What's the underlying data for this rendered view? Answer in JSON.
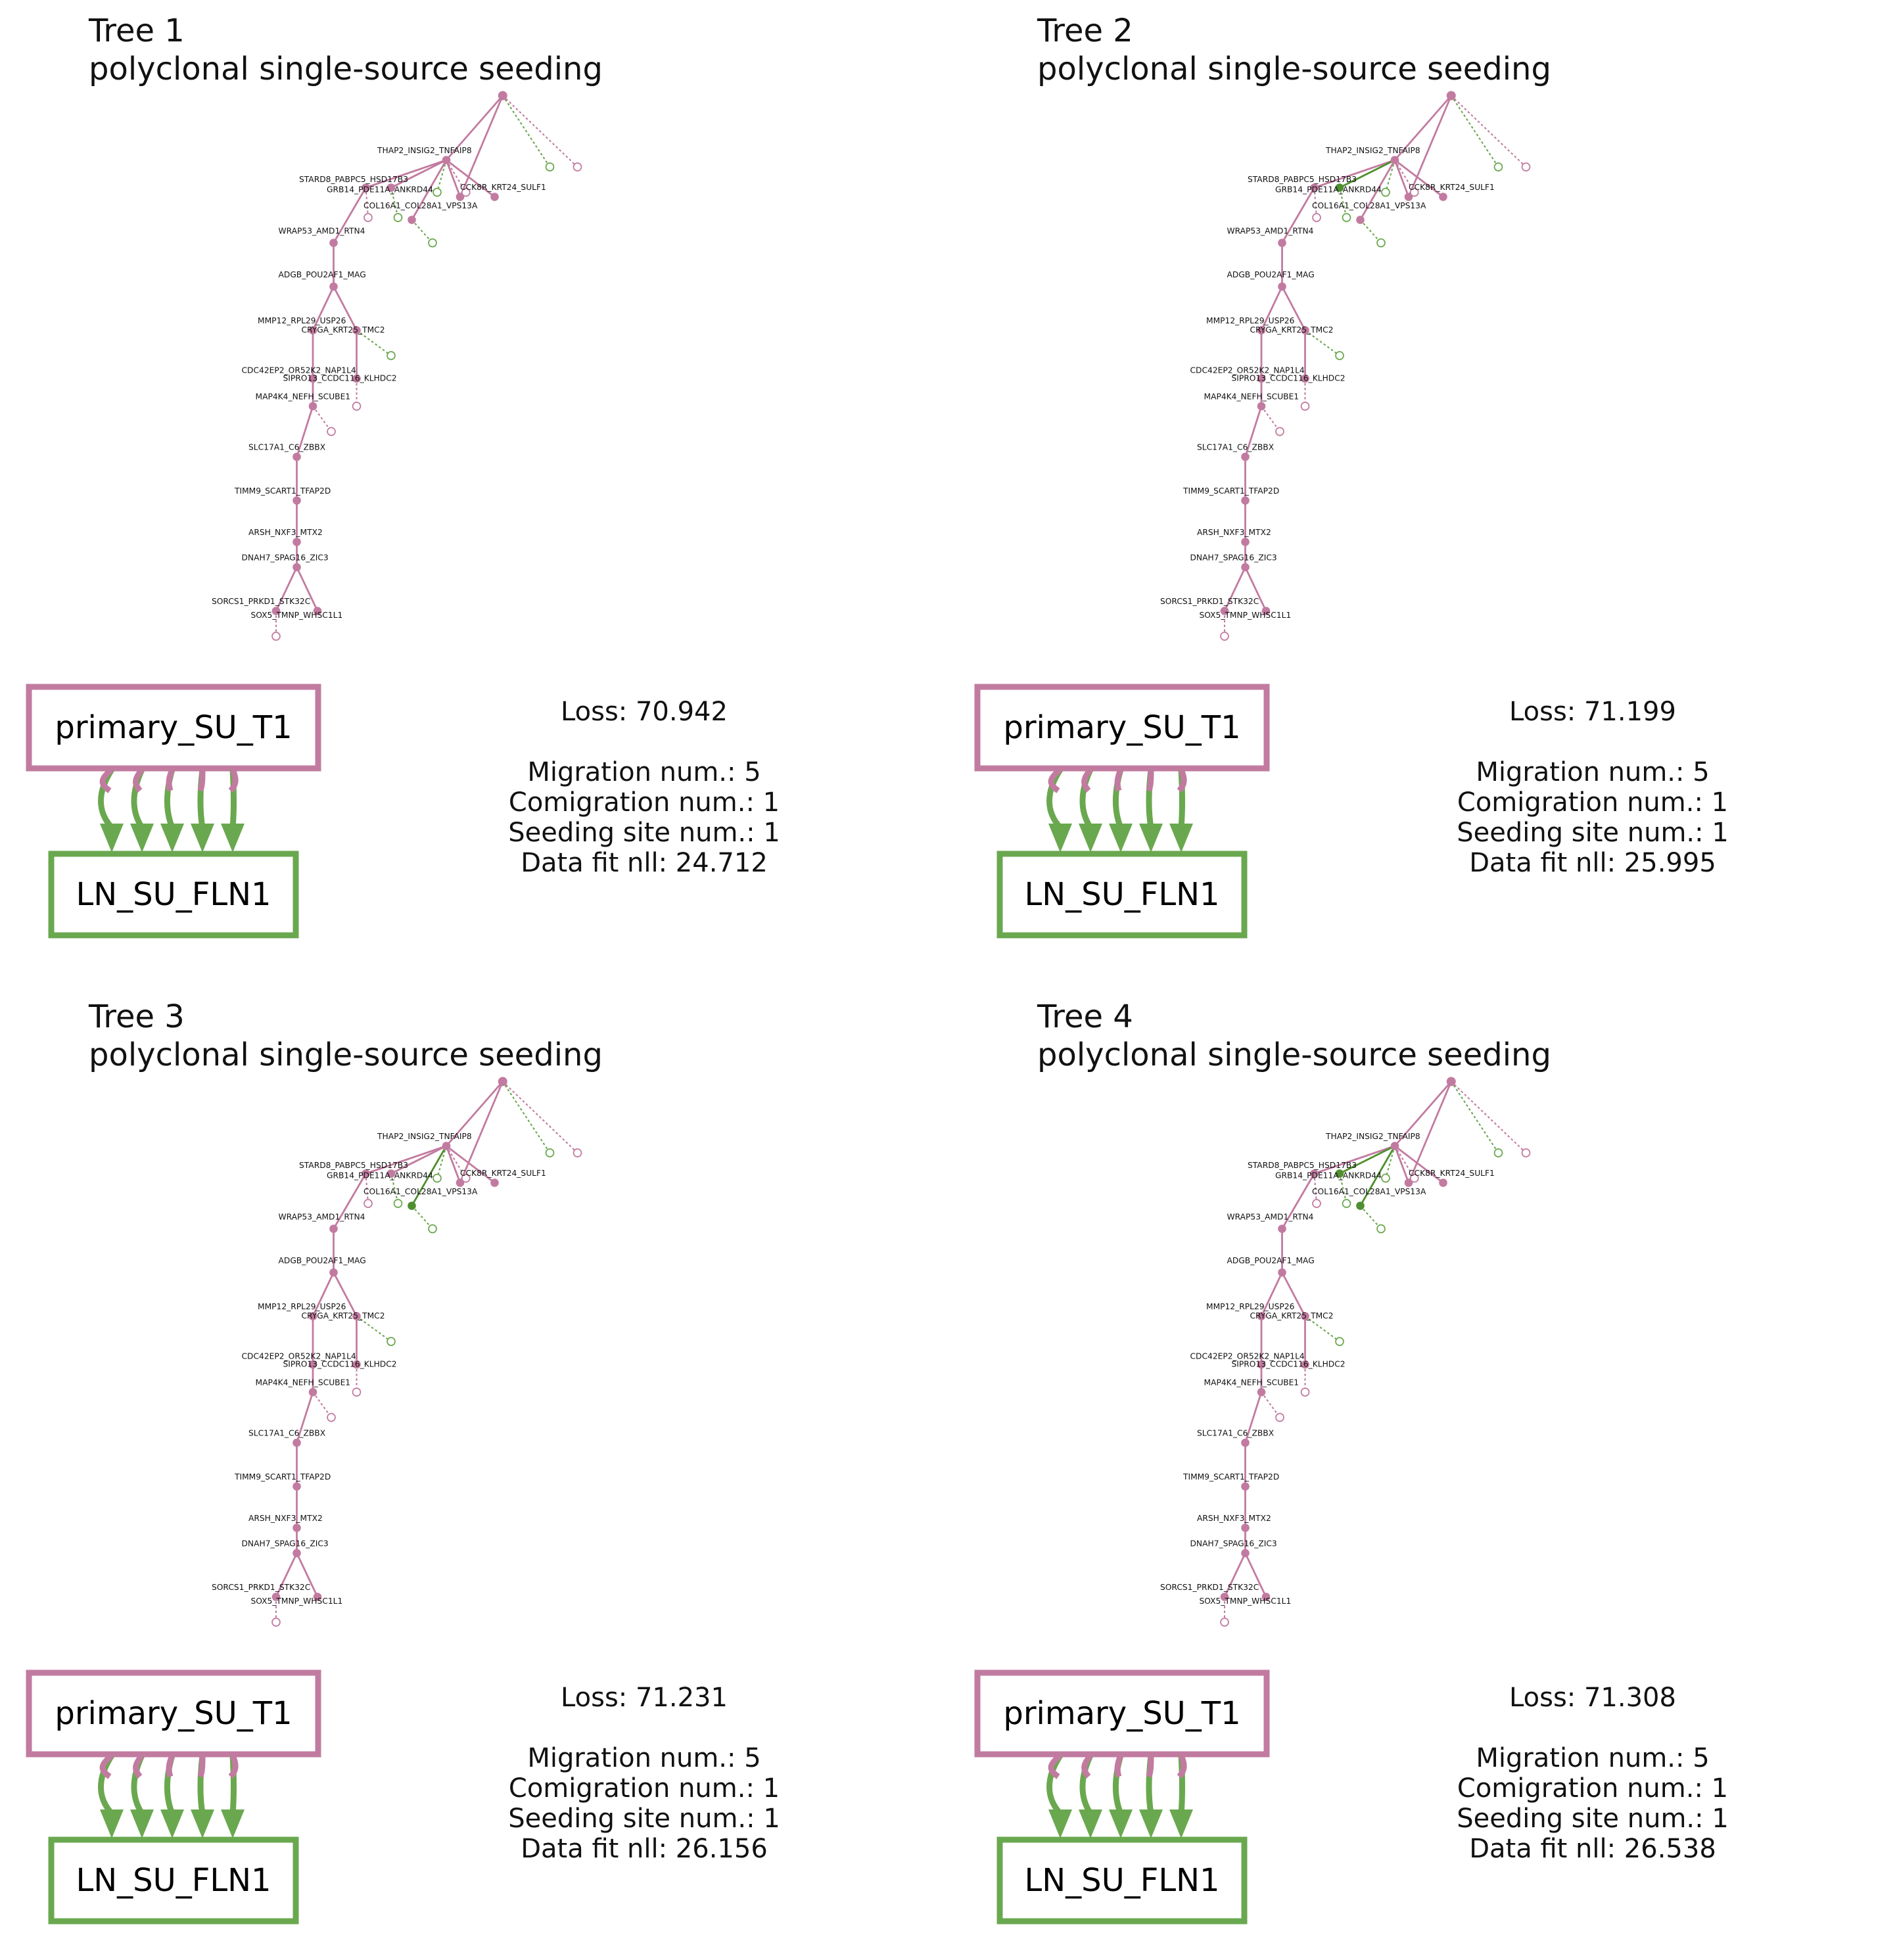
{
  "colors": {
    "primary": "#c27ba0",
    "metastasis": "#6aa84f",
    "metastasis_dark": "#4f8f2f"
  },
  "panels": [
    {
      "title": "Tree 1",
      "subtitle": "polyclonal single-source seeding",
      "source_site": "primary_SU_T1",
      "target_site": "LN_SU_FLN1",
      "stats": {
        "loss": "Loss: 70.942",
        "migration": "Migration num.: 5",
        "comigration": "Comigration num.: 1",
        "seeding": "Seeding site num.: 1",
        "datafit": "Data fit nll: 24.712"
      },
      "migration_edges": 5
    },
    {
      "title": "Tree 2",
      "subtitle": "polyclonal single-source seeding",
      "source_site": "primary_SU_T1",
      "target_site": "LN_SU_FLN1",
      "stats": {
        "loss": "Loss: 71.199",
        "migration": "Migration num.: 5",
        "comigration": "Comigration num.: 1",
        "seeding": "Seeding site num.: 1",
        "datafit": "Data fit nll: 25.995"
      },
      "migration_edges": 5
    },
    {
      "title": "Tree 3",
      "subtitle": "polyclonal single-source seeding",
      "source_site": "primary_SU_T1",
      "target_site": "LN_SU_FLN1",
      "stats": {
        "loss": "Loss: 71.231",
        "migration": "Migration num.: 5",
        "comigration": "Comigration num.: 1",
        "seeding": "Seeding site num.: 1",
        "datafit": "Data fit nll: 26.156"
      },
      "migration_edges": 5
    },
    {
      "title": "Tree 4",
      "subtitle": "polyclonal single-source seeding",
      "source_site": "primary_SU_T1",
      "target_site": "LN_SU_FLN1",
      "stats": {
        "loss": "Loss: 71.308",
        "migration": "Migration num.: 5",
        "comigration": "Comigration num.: 1",
        "seeding": "Seeding site num.: 1",
        "datafit": "Data fit nll: 26.538"
      },
      "migration_edges": 5
    }
  ],
  "tree_labels": [
    "THAP2_INSIG2_TNFAIP8",
    "STARD8_PABPC5_HSD17B3",
    "GRB14_PDE11A_ANKRD44",
    "COL16A1_COL28A1_VPS13A",
    "CCK8R_KRT24_SULF1",
    "WRAP53_AMD1_RTN4",
    "ADGB_POU2AF1_MAG",
    "MMP12_RPL29_USP26",
    "CRYGA_KRT25_TMC2",
    "CDC42EP2_OR52K2_NAP1L4",
    "SIPRO13_CCDC116_KLHDC2",
    "MAP4K4_NEFH_SCUBE1",
    "SLC17A1_C6_ZBBX",
    "TIMM9_SCART1_TFAP2D",
    "ARSH_NXF3_MTX2",
    "DNAH7_SPAG16_ZIC3",
    "SORCS1_PRKD1_STK32C",
    "SOX5_TMNP_WHSC1L1"
  ]
}
